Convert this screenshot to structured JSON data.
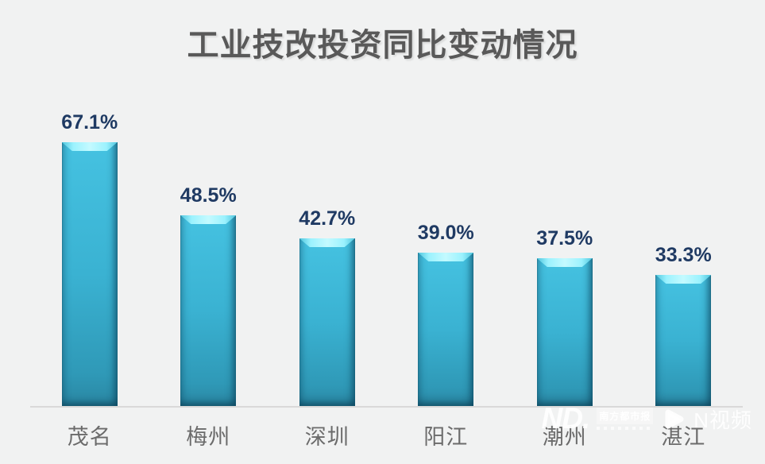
{
  "title": "工业技改投资同比变动情况",
  "chart_data": {
    "type": "bar",
    "title": "工业技改投资同比变动情况",
    "categories": [
      "茂名",
      "梅州",
      "深圳",
      "阳江",
      "潮州",
      "湛江"
    ],
    "values": [
      67.1,
      48.5,
      42.7,
      39.0,
      37.5,
      33.3
    ],
    "value_labels": [
      "67.1%",
      "48.5%",
      "42.7%",
      "39.0%",
      "37.5%",
      "33.3%"
    ],
    "unit": "%",
    "ylim": [
      0,
      70
    ],
    "grid": false,
    "legend": "none",
    "xlabel": "",
    "ylabel": "",
    "bar_color": "#3ab2d2"
  },
  "watermark": {
    "logo_text": "ND.",
    "paper_name": "南方都市报",
    "video_label": "N视频",
    "play_icon": "play-triangle"
  },
  "colors": {
    "background": "#f1f2f2",
    "title_text": "#595959",
    "value_label": "#1f3a63",
    "category_label": "#6b6b6b",
    "axis_line": "#d9d9d9",
    "bar_body": "#3ab2d2",
    "bar_bevel_highlight": "#c4faff",
    "watermark_text": "#ffffff"
  }
}
